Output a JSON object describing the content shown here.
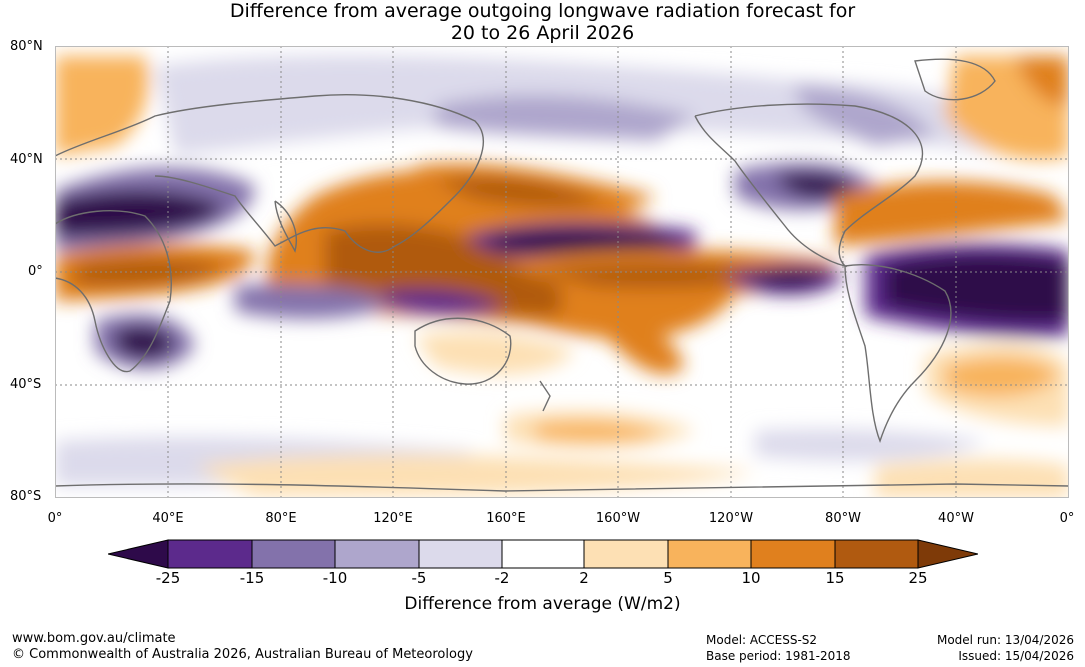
{
  "title": {
    "line1": "Difference from average outgoing longwave radiation forecast for",
    "line2": "20 to 26 April 2026"
  },
  "map": {
    "lat_labels": [
      "80°N",
      "40°N",
      "0°",
      "40°S",
      "80°S"
    ],
    "lon_labels": [
      "0°",
      "40°E",
      "80°E",
      "120°E",
      "160°E",
      "160°W",
      "120°W",
      "80°W",
      "40°W",
      "0°"
    ]
  },
  "colorbar": {
    "ticks": [
      "-25",
      "-15",
      "-10",
      "-5",
      "-2",
      "2",
      "5",
      "10",
      "15",
      "25"
    ],
    "colors": [
      "#2e0a4a",
      "#5c2a8c",
      "#8372ab",
      "#aea6cc",
      "#dcdaeb",
      "#ffffff",
      "#fde0b4",
      "#f8b35c",
      "#e0801e",
      "#b05a10",
      "#7e3a08"
    ],
    "label": "Difference from average (W/m2)"
  },
  "footer": {
    "website": "www.bom.gov.au/climate",
    "copyright": "© Commonwealth of Australia 2026, Australian Bureau of Meteorology",
    "model": "Model: ACCESS-S2",
    "base_period": "Base period: 1981-2018",
    "model_run": "Model run: 13/04/2026",
    "issued": "Issued: 15/04/2026"
  }
}
